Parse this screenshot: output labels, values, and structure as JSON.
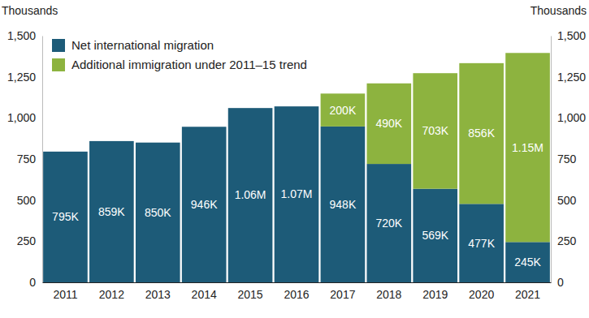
{
  "chart_data": {
    "type": "bar",
    "stacked": true,
    "data_labels": true,
    "grid": false,
    "legend": "upper left",
    "ylabel": "Thousands",
    "y2label": "Thousands",
    "categories": [
      "2011",
      "2012",
      "2013",
      "2014",
      "2015",
      "2016",
      "2017",
      "2018",
      "2019",
      "2020",
      "2021"
    ],
    "series": [
      {
        "name": "Net international migration",
        "color": "#1d5b78",
        "values": [
          795,
          859,
          850,
          946,
          1060,
          1070,
          948,
          720,
          569,
          477,
          245
        ],
        "value_labels": [
          "795K",
          "859K",
          "850K",
          "946K",
          "1.06M",
          "1.07M",
          "948K",
          "720K",
          "569K",
          "477K",
          "245K"
        ]
      },
      {
        "name": "Additional immigration under 2011–15 trend",
        "color": "#8db33f",
        "values": [
          null,
          null,
          null,
          null,
          null,
          null,
          200,
          490,
          703,
          856,
          1150
        ],
        "value_labels": [
          null,
          null,
          null,
          null,
          null,
          null,
          "200K",
          "490K",
          "703K",
          "856K",
          "1.15M"
        ]
      }
    ],
    "ylim": [
      0,
      1500
    ],
    "yticks": [
      0,
      250,
      500,
      750,
      {
        "value": 1000,
        "label": "1,000"
      },
      {
        "value": 1250,
        "label": "1,250"
      },
      {
        "value": 1500,
        "label": "1,500"
      }
    ],
    "y2lim": [
      0,
      1500
    ],
    "y2ticks": [
      0,
      250,
      500,
      750,
      {
        "value": 1000,
        "label": "1,000"
      },
      {
        "value": 1250,
        "label": "1,250"
      },
      {
        "value": 1500,
        "label": "1,500"
      }
    ]
  }
}
